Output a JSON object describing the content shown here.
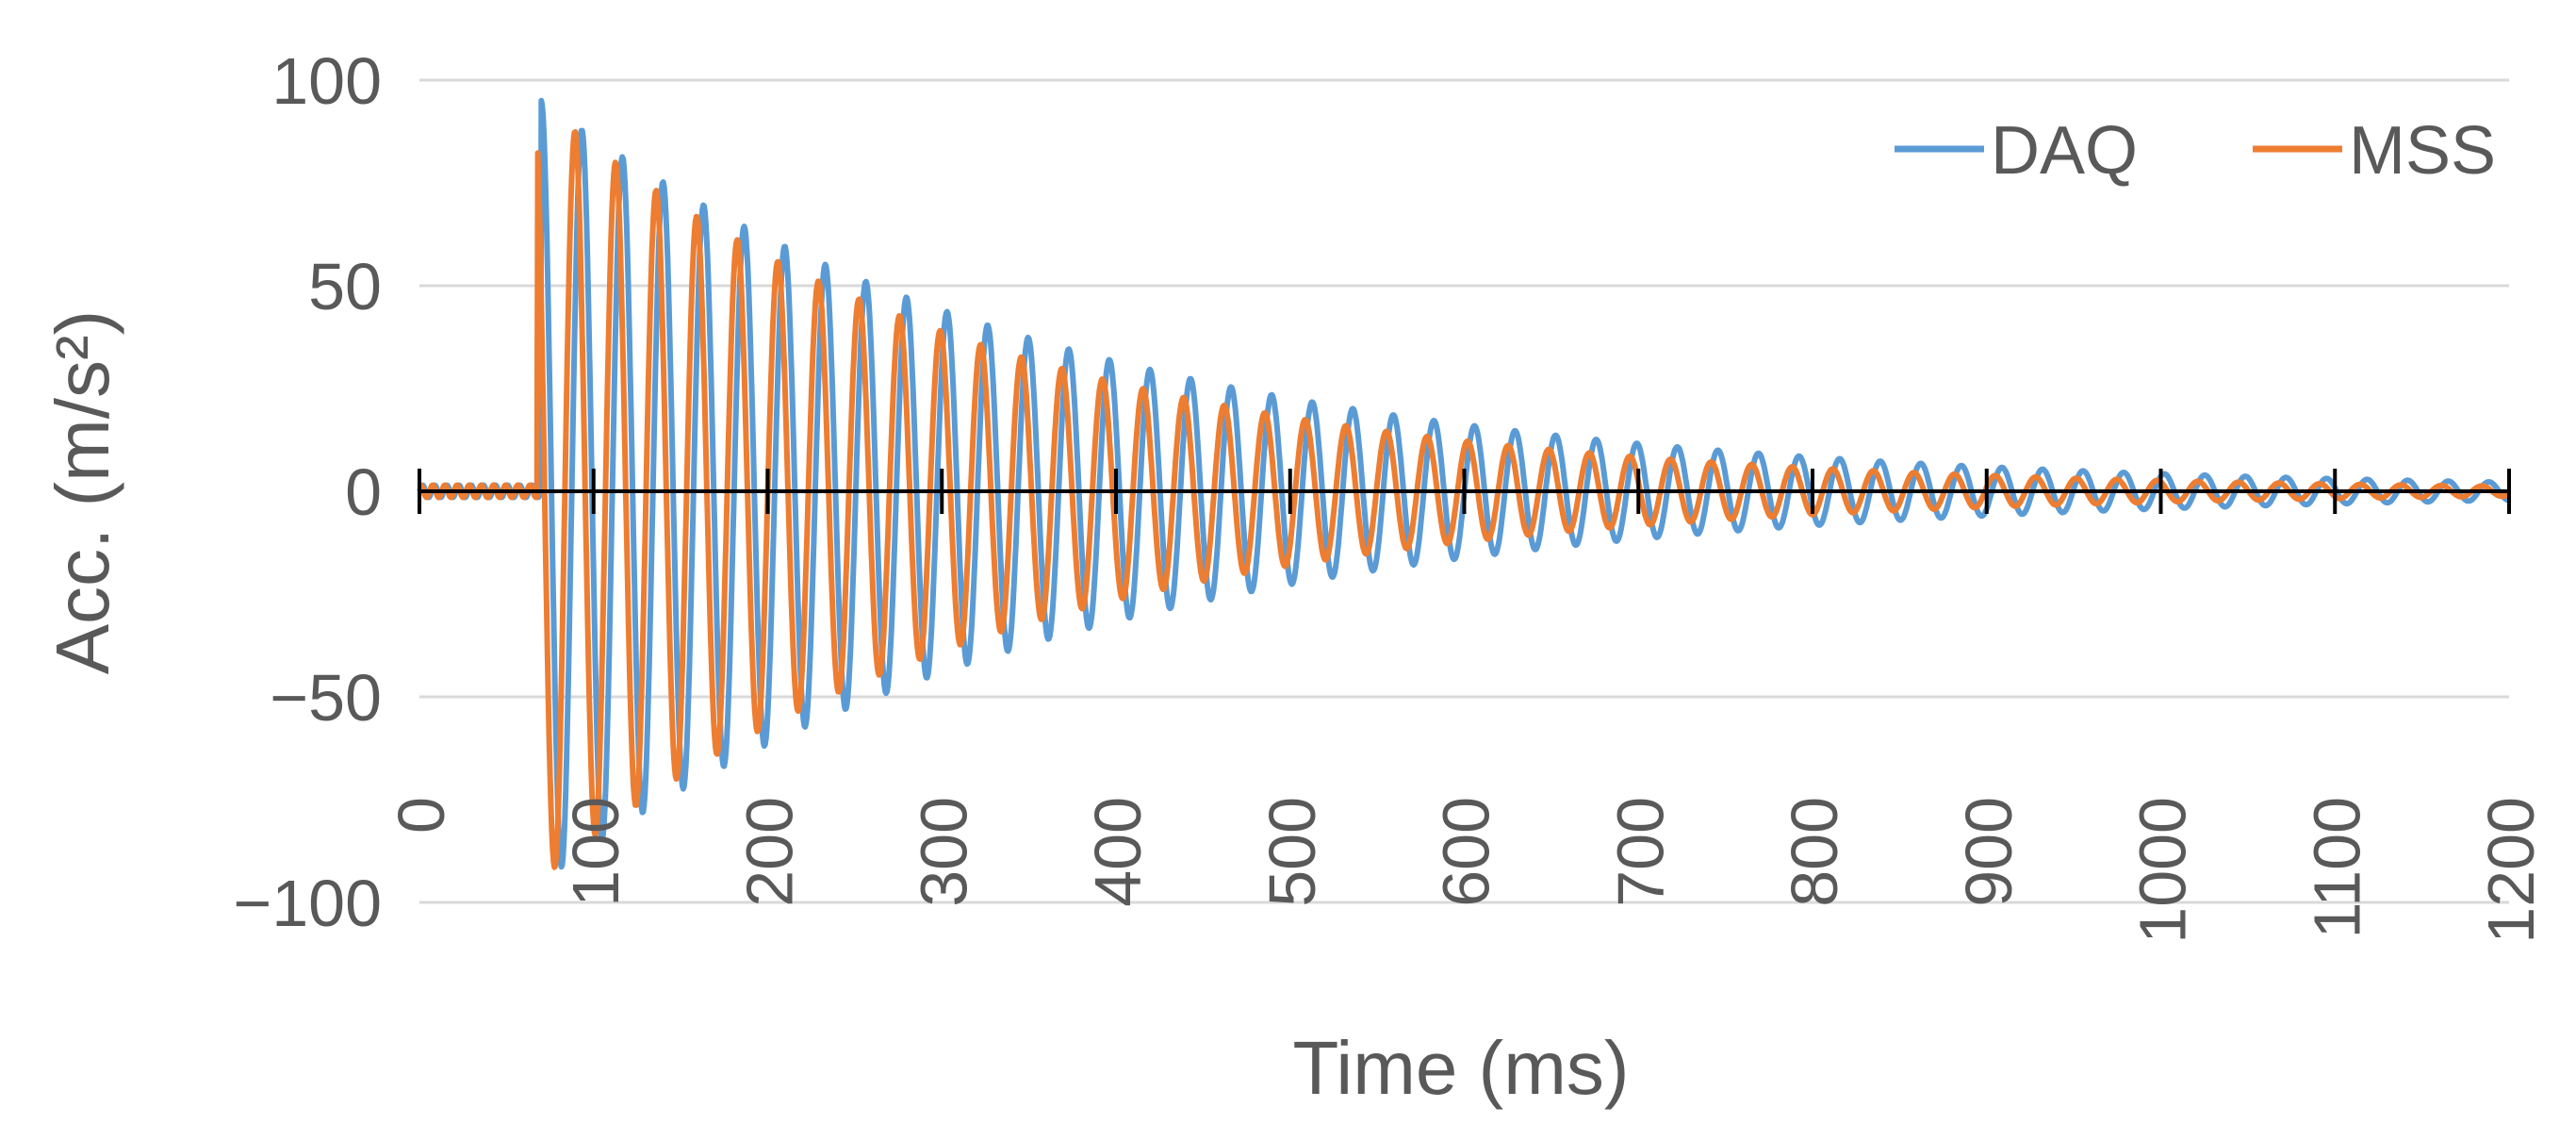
{
  "chart_data": {
    "type": "line",
    "title": "",
    "xlabel": "Time (ms)",
    "ylabel": "Acc. (m/s²)",
    "xlim": [
      0,
      1200
    ],
    "ylim": [
      -100,
      100
    ],
    "xticks": [
      "0",
      "100",
      "200",
      "300",
      "400",
      "500",
      "600",
      "700",
      "800",
      "900",
      "1000",
      "1100",
      "1200"
    ],
    "yticks": [
      "100",
      "50",
      "0",
      "−50",
      "−100"
    ],
    "grid": "horizontal",
    "legend_position": "top-right",
    "series": [
      {
        "name": "DAQ",
        "color": "#5B9BD5",
        "onset_ms": 70,
        "period_ms": 23.3,
        "peak": 95,
        "decay_ms": 300,
        "phase_deg": 0
      },
      {
        "name": "MSS",
        "color": "#ED7D31",
        "onset_ms": 68,
        "period_ms": 23.3,
        "peak": 95,
        "decay_ms": 260,
        "phase_deg": 30
      }
    ]
  }
}
